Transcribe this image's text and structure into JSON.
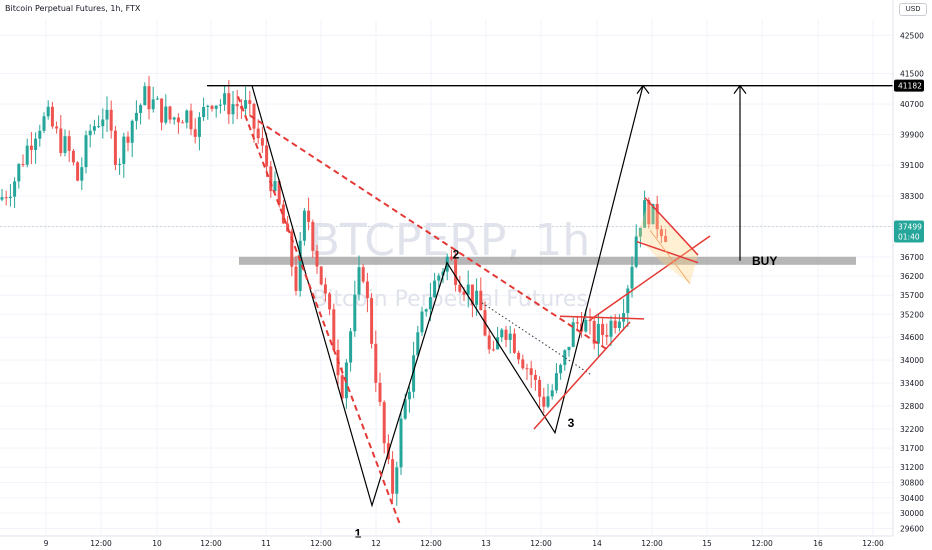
{
  "header": {
    "title": "Bitcoin Perpetual Futures, 1h, FTX",
    "currency": "USD"
  },
  "watermark": {
    "line1": "BTCPERP, 1h",
    "line2": "Bitcoin Perpetual Futures"
  },
  "colors": {
    "up": "#26a69a",
    "down": "#ef5350",
    "line": "#000000",
    "annotation": "#e53935",
    "buy_zone": "#9e9e9e"
  },
  "chart_data": {
    "type": "candlestick",
    "title": "Bitcoin Perpetual Futures, 1h, FTX",
    "y_axis_position": "right",
    "ylim": [
      29400,
      42900
    ],
    "y_ticks": [
      42500,
      41500,
      40700,
      39900,
      39100,
      38300,
      37500,
      36700,
      36200,
      35700,
      35200,
      34600,
      34000,
      33400,
      32800,
      32200,
      31700,
      31200,
      30800,
      30400,
      30000,
      29600
    ],
    "x_tick_labels": [
      "9",
      "12:00",
      "10",
      "12:00",
      "11",
      "12:00",
      "12",
      "12:00",
      "13",
      "12:00",
      "14",
      "12:00",
      "15",
      "12:00",
      "16",
      "12:00"
    ],
    "price_labels": [
      {
        "value": 41182,
        "text": "41182"
      },
      {
        "value": 37499,
        "text": "37499",
        "countdown": "01:40"
      }
    ],
    "pattern_labels": [
      "1",
      "2",
      "3"
    ],
    "annotation_text": "BUY",
    "resistance_level": 41182,
    "buy_zone": 36600,
    "last_price": 37499,
    "wave_points": [
      {
        "label": "1",
        "price": 30200
      },
      {
        "label": "2",
        "price": 36550
      },
      {
        "label": "3",
        "price": 32100
      }
    ],
    "price_path": [
      [
        0,
        38200
      ],
      [
        14,
        38700
      ],
      [
        26,
        39500
      ],
      [
        38,
        40200
      ],
      [
        48,
        40300
      ],
      [
        58,
        39800
      ],
      [
        68,
        39500
      ],
      [
        78,
        38700
      ],
      [
        90,
        40000
      ],
      [
        104,
        40500
      ],
      [
        118,
        39200
      ],
      [
        130,
        40200
      ],
      [
        145,
        40900
      ],
      [
        158,
        40600
      ],
      [
        170,
        40300
      ],
      [
        185,
        40500
      ],
      [
        198,
        40100
      ],
      [
        210,
        40900
      ],
      [
        222,
        40700
      ],
      [
        234,
        40700
      ],
      [
        246,
        40600
      ],
      [
        254,
        40100
      ],
      [
        268,
        39000
      ],
      [
        284,
        37500
      ],
      [
        296,
        36000
      ],
      [
        306,
        38000
      ],
      [
        318,
        36500
      ],
      [
        330,
        35000
      ],
      [
        342,
        33300
      ],
      [
        352,
        35000
      ],
      [
        362,
        36600
      ],
      [
        372,
        34500
      ],
      [
        384,
        31800
      ],
      [
        392,
        30500
      ],
      [
        402,
        32500
      ],
      [
        414,
        34000
      ],
      [
        426,
        35500
      ],
      [
        438,
        36200
      ],
      [
        448,
        36700
      ],
      [
        458,
        36200
      ],
      [
        470,
        35800
      ],
      [
        482,
        35200
      ],
      [
        492,
        33800
      ],
      [
        502,
        35000
      ],
      [
        512,
        34600
      ],
      [
        522,
        34100
      ],
      [
        532,
        33600
      ],
      [
        542,
        32900
      ],
      [
        552,
        33200
      ],
      [
        562,
        33800
      ],
      [
        572,
        34800
      ],
      [
        582,
        35100
      ],
      [
        592,
        34600
      ],
      [
        602,
        34700
      ],
      [
        612,
        35000
      ],
      [
        622,
        35400
      ],
      [
        630,
        36300
      ],
      [
        638,
        37600
      ],
      [
        646,
        38000
      ],
      [
        654,
        37700
      ],
      [
        662,
        37500
      ],
      [
        668,
        37300
      ]
    ]
  }
}
